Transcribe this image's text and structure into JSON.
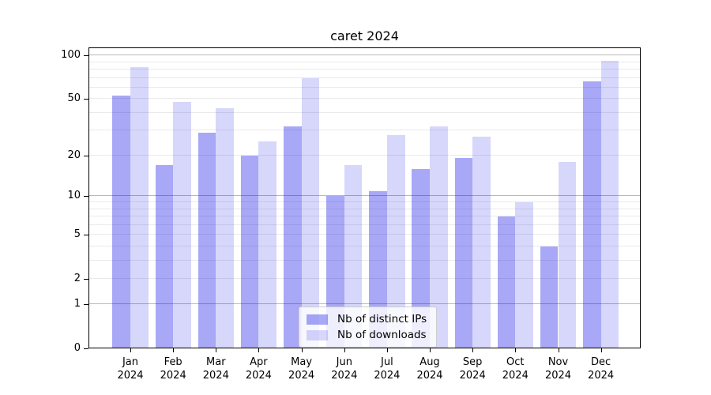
{
  "title": "caret 2024",
  "chart_data": {
    "type": "bar",
    "title": "caret 2024",
    "subtitle": "",
    "xlabel": "",
    "ylabel": "",
    "yscale": "log1p",
    "grid": "both",
    "months": [
      "Jan",
      "Feb",
      "Mar",
      "Apr",
      "May",
      "Jun",
      "Jul",
      "Aug",
      "Sep",
      "Oct",
      "Nov",
      "Dec"
    ],
    "year_label": "2024",
    "series": [
      {
        "name": "Nb of distinct IPs",
        "color": "rgba(0,0,230,0.34)",
        "values": [
          53,
          17,
          29,
          20,
          32,
          10,
          11,
          16,
          19,
          7,
          4,
          66
        ]
      },
      {
        "name": "Nb of downloads",
        "color": "rgba(0,0,230,0.155)",
        "values": [
          83,
          48,
          43,
          25,
          70,
          17,
          28,
          32,
          27,
          9,
          18,
          92
        ]
      }
    ],
    "y_ticks": [
      0,
      1,
      2,
      5,
      10,
      20,
      50,
      100
    ],
    "y_major_gridlines": [
      1,
      10,
      100
    ],
    "y_minor_gridlines": [
      2,
      3,
      4,
      5,
      6,
      7,
      8,
      9,
      20,
      30,
      40,
      50,
      60,
      70,
      80,
      90
    ],
    "ylim": [
      0,
      114
    ],
    "legend": {
      "position": "lower center",
      "entries": [
        "Nb of distinct IPs",
        "Nb of downloads"
      ]
    }
  }
}
